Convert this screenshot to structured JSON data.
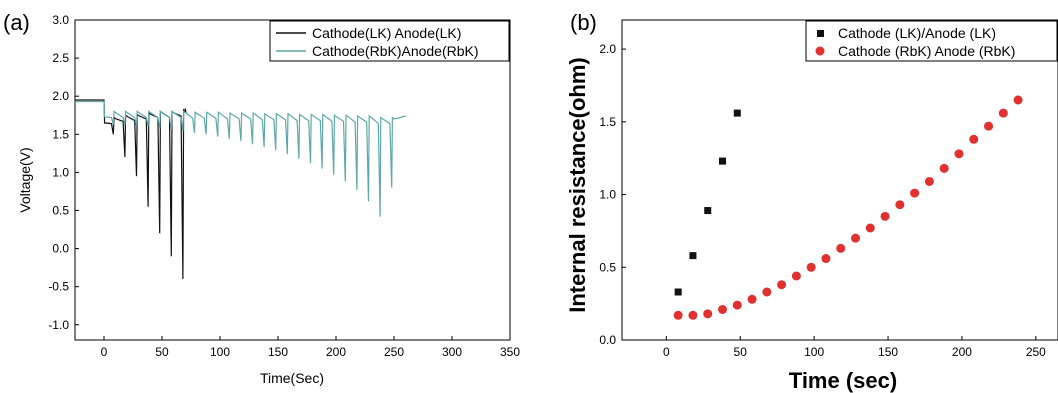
{
  "chart_data": [
    {
      "panel_label": "(a)",
      "type": "line",
      "xlabel": "Time(Sec)",
      "ylabel": "Voltage(V)",
      "xlim": [
        -25,
        350
      ],
      "ylim": [
        -1.2,
        3.0
      ],
      "xticks": [
        0,
        50,
        100,
        150,
        200,
        250,
        300,
        350
      ],
      "yticks": [
        -1.0,
        -0.5,
        0.0,
        0.5,
        1.0,
        1.5,
        2.0,
        2.5,
        3.0
      ],
      "xtick_labels": [
        "0",
        "50",
        "100",
        "150",
        "200",
        "250",
        "300",
        "350"
      ],
      "ytick_labels": [
        "-1.0",
        "-0.5",
        "0.0",
        "0.5",
        "1.0",
        "1.5",
        "2.0",
        "2.5",
        "3.0"
      ],
      "legend_position": "top-right",
      "series": [
        {
          "name": "Cathode(LK) Anode(LK)",
          "color": "#111111",
          "initial_voltage": 1.95,
          "pulse_times": [
            8,
            18,
            28,
            38,
            48,
            58,
            68
          ],
          "pulse_min_voltages": [
            1.5,
            1.2,
            0.95,
            0.55,
            0.2,
            -0.1,
            -0.4
          ],
          "recovery_voltages": [
            1.72,
            1.75,
            1.76,
            1.78,
            1.8,
            1.8,
            1.82
          ],
          "end_time": 70
        },
        {
          "name": "Cathode(RbK)Anode(RbK)",
          "color": "#5fa8a8",
          "initial_voltage": 1.93,
          "pulse_times": [
            8,
            18,
            28,
            38,
            48,
            58,
            68,
            78,
            88,
            98,
            108,
            118,
            128,
            138,
            148,
            158,
            168,
            178,
            188,
            198,
            208,
            218,
            228,
            238,
            248
          ],
          "pulse_min_voltages": [
            1.63,
            1.62,
            1.61,
            1.6,
            1.58,
            1.56,
            1.54,
            1.52,
            1.5,
            1.47,
            1.44,
            1.41,
            1.37,
            1.33,
            1.29,
            1.24,
            1.18,
            1.12,
            1.05,
            0.97,
            0.88,
            0.77,
            0.62,
            0.42,
            0.8
          ],
          "recovery_voltages": [
            1.8,
            1.8,
            1.8,
            1.8,
            1.8,
            1.8,
            1.8,
            1.79,
            1.79,
            1.79,
            1.78,
            1.78,
            1.78,
            1.77,
            1.77,
            1.77,
            1.76,
            1.76,
            1.76,
            1.75,
            1.75,
            1.74,
            1.74,
            1.72,
            1.72
          ],
          "end_time": 260
        }
      ]
    },
    {
      "panel_label": "(b)",
      "type": "scatter",
      "xlabel": "Time (sec)",
      "ylabel": "Internal resistance(ohm)",
      "xlim": [
        -30,
        265
      ],
      "ylim": [
        0.0,
        2.2
      ],
      "xticks": [
        0,
        50,
        100,
        150,
        200,
        250
      ],
      "yticks": [
        0.0,
        0.5,
        1.0,
        1.5,
        2.0
      ],
      "xtick_labels": [
        "0",
        "50",
        "100",
        "150",
        "200",
        "250"
      ],
      "ytick_labels": [
        "0.0",
        "0.5",
        "1.0",
        "1.5",
        "2.0"
      ],
      "legend_position": "top-right",
      "series": [
        {
          "name": "Cathode (LK)/Anode (LK)",
          "marker": "square",
          "color": "#111111",
          "x": [
            8,
            18,
            28,
            38,
            48
          ],
          "y": [
            0.33,
            0.58,
            0.89,
            1.23,
            1.56
          ]
        },
        {
          "name": "Cathode (RbK) Anode (RbK)",
          "marker": "circle",
          "color": "#e03030",
          "x": [
            8,
            18,
            28,
            38,
            48,
            58,
            68,
            78,
            88,
            98,
            108,
            118,
            128,
            138,
            148,
            158,
            168,
            178,
            188,
            198,
            208,
            218,
            228,
            238
          ],
          "y": [
            0.17,
            0.17,
            0.18,
            0.21,
            0.24,
            0.28,
            0.33,
            0.38,
            0.44,
            0.5,
            0.56,
            0.63,
            0.7,
            0.77,
            0.85,
            0.93,
            1.01,
            1.09,
            1.18,
            1.28,
            1.38,
            1.47,
            1.56,
            1.65
          ]
        }
      ]
    }
  ]
}
